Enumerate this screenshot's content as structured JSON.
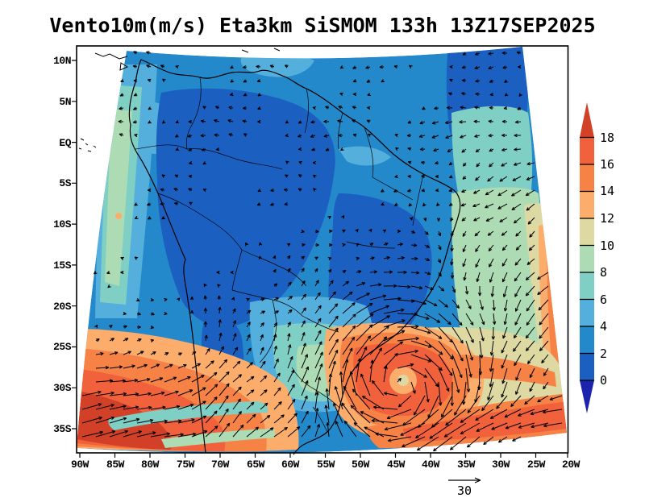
{
  "title": "Vento10m(m/s) Eta3km SiSMOM 133h 13Z17SEP2025",
  "axes": {
    "lat_labels": [
      "10N",
      "5N",
      "EQ",
      "5S",
      "10S",
      "15S",
      "20S",
      "25S",
      "30S",
      "35S"
    ],
    "lon_labels": [
      "90W",
      "85W",
      "80W",
      "75W",
      "70W",
      "65W",
      "60W",
      "55W",
      "50W",
      "45W",
      "40W",
      "35W",
      "30W",
      "25W",
      "20W"
    ]
  },
  "colorbar": {
    "labels": [
      "0",
      "2",
      "4",
      "6",
      "8",
      "10",
      "12",
      "14",
      "16",
      "18"
    ],
    "band_colors": [
      "#1b5fc1",
      "#2389cb",
      "#55afdc",
      "#80cfc5",
      "#addcb4",
      "#ded8a3",
      "#fcad6c",
      "#f68345",
      "#f1613c"
    ],
    "above_color": "#d24027",
    "below_color": "#1c24ad"
  },
  "reference_vector": {
    "label": "30"
  },
  "wind_units": "m/s"
}
